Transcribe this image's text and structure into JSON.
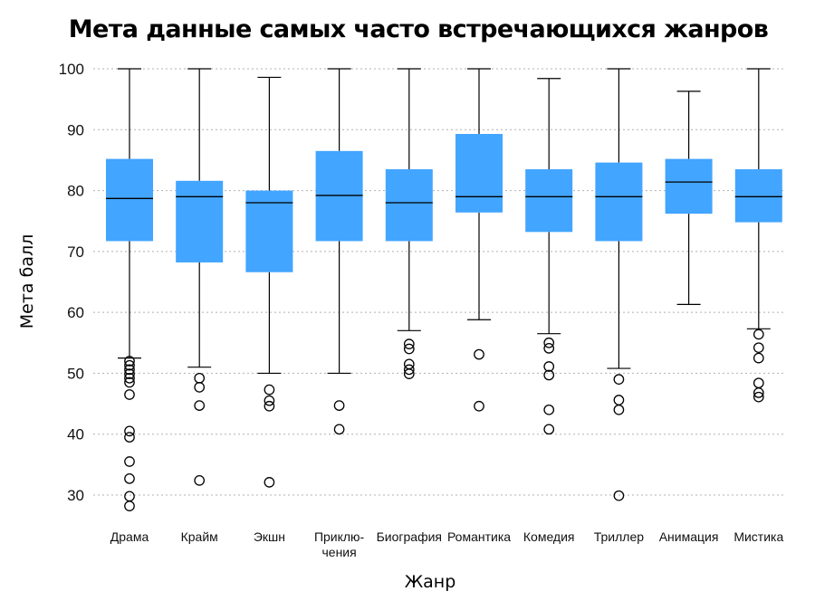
{
  "chart_data": {
    "type": "box",
    "title": "Мета данные самых часто встречающихся жанров",
    "xlabel": "Жанр",
    "ylabel": "Мета балл",
    "ylim": [
      25,
      102
    ],
    "yticks": [
      30,
      40,
      50,
      60,
      70,
      80,
      90,
      100
    ],
    "grid": "horizontal",
    "box_color": "#42a5ff",
    "categories": [
      {
        "label": [
          "Драма"
        ],
        "whisker_low": 52.5,
        "q1": 71.7,
        "median": 78.7,
        "q3": 85.2,
        "whisker_high": 100,
        "outliers": [
          52,
          51.3,
          50.6,
          49.9,
          49.2,
          48.5,
          46.5,
          40.5,
          39.5,
          35.5,
          32.7,
          29.8,
          28.2
        ]
      },
      {
        "label": [
          "Крайм"
        ],
        "whisker_low": 51,
        "q1": 68.2,
        "median": 79,
        "q3": 81.6,
        "whisker_high": 100,
        "outliers": [
          49.2,
          47.7,
          44.7,
          32.4
        ]
      },
      {
        "label": [
          "Экшн"
        ],
        "whisker_low": 50,
        "q1": 66.6,
        "median": 78,
        "q3": 80,
        "whisker_high": 98.6,
        "outliers": [
          47.3,
          45.5,
          44.6,
          32.1
        ]
      },
      {
        "label": [
          "Приклю-",
          "чения"
        ],
        "whisker_low": 50,
        "q1": 71.7,
        "median": 79.2,
        "q3": 86.5,
        "whisker_high": 100,
        "outliers": [
          44.7,
          40.8
        ]
      },
      {
        "label": [
          "Биография"
        ],
        "whisker_low": 57,
        "q1": 71.7,
        "median": 78,
        "q3": 83.5,
        "whisker_high": 100,
        "outliers": [
          54.8,
          54,
          51.5,
          50.6,
          49.9
        ]
      },
      {
        "label": [
          "Романтика"
        ],
        "whisker_low": 58.8,
        "q1": 76.4,
        "median": 79,
        "q3": 89.3,
        "whisker_high": 100,
        "outliers": [
          53.1,
          44.6
        ]
      },
      {
        "label": [
          "Комедия"
        ],
        "whisker_low": 56.5,
        "q1": 73.2,
        "median": 79,
        "q3": 83.5,
        "whisker_high": 98.4,
        "outliers": [
          55,
          54.1,
          51.1,
          49.7,
          44,
          40.8
        ]
      },
      {
        "label": [
          "Триллер"
        ],
        "whisker_low": 50.8,
        "q1": 71.7,
        "median": 79,
        "q3": 84.6,
        "whisker_high": 100,
        "outliers": [
          49,
          45.6,
          44,
          29.9
        ]
      },
      {
        "label": [
          "Анимация"
        ],
        "whisker_low": 61.3,
        "q1": 76.2,
        "median": 81.4,
        "q3": 85.2,
        "whisker_high": 96.3,
        "outliers": []
      },
      {
        "label": [
          "Мистика"
        ],
        "whisker_low": 57.3,
        "q1": 74.8,
        "median": 79,
        "q3": 83.5,
        "whisker_high": 100,
        "outliers": [
          56.4,
          54.2,
          52.5,
          48.4,
          46.8,
          46.1
        ]
      }
    ]
  }
}
